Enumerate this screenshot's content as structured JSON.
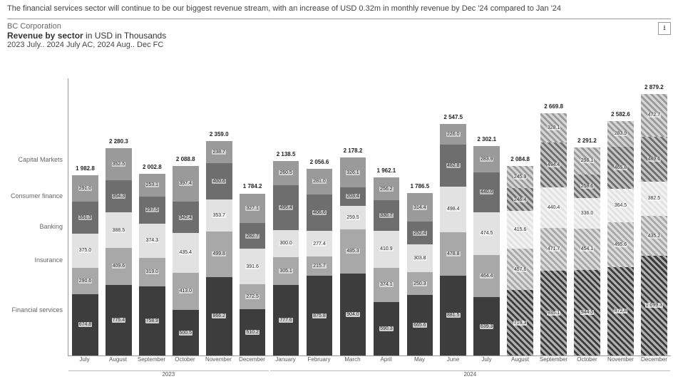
{
  "insight": "The financial services sector will continue to be our biggest revenue stream, with an increase of USD 0.32m in monthly revenue by Dec '24 compared to Jan '24",
  "company": "BC Corporation",
  "title_bold": "Revenue by sector",
  "title_rest": " in USD  in Thousands",
  "subtitle": "2023 July.. 2024 July AC, 2024 Aug.. Dec FC",
  "export_tooltip": "Export",
  "chart": {
    "type": "stacked-bar",
    "y_max": 3050,
    "segment_label_fontsize": 7,
    "total_fontsize": 8,
    "axis_fontsize": 8,
    "colors": {
      "Financial services": "#3d3d3d",
      "Insurance": "#a8a8a8",
      "Banking": "#e2e2e2",
      "Consumer finance": "#6e6e6e",
      "Capital Markets": "#9a9a9a",
      "forecast_overlay": "hatched-white",
      "axis": "#999999",
      "background": "#ffffff"
    },
    "sectors": [
      "Financial services",
      "Insurance",
      "Banking",
      "Consumer finance",
      "Capital Markets"
    ],
    "sector_label_positions_pct": [
      82,
      64,
      52,
      41,
      28
    ],
    "year_groups": [
      {
        "label": "2023",
        "span": 6
      },
      {
        "label": "2024",
        "span": 12
      }
    ],
    "months": [
      {
        "label": "July",
        "year": 2023,
        "fc": false,
        "total": "1 982.8",
        "vals": [
          674.8,
          290.6,
          375.0,
          351.3,
          291.0
        ]
      },
      {
        "label": "August",
        "year": 2023,
        "fc": false,
        "total": "2 280.3",
        "vals": [
          775.4,
          409.6,
          388.5,
          354.3,
          352.5
        ]
      },
      {
        "label": "September",
        "year": 2023,
        "fc": false,
        "total": "2 002.8",
        "vals": [
          758.9,
          319.0,
          374.3,
          297.5,
          253.1
        ]
      },
      {
        "label": "October",
        "year": 2023,
        "fc": false,
        "total": "2 088.8",
        "vals": [
          500.5,
          413.0,
          435.4,
          342.4,
          397.4
        ]
      },
      {
        "label": "November",
        "year": 2023,
        "fc": false,
        "total": "2 359.0",
        "vals": [
          866.2,
          499.8,
          353.7,
          400.6,
          238.7
        ]
      },
      {
        "label": "December",
        "year": 2023,
        "fc": false,
        "total": "1 784.2",
        "vals": [
          510.2,
          272.5,
          391.6,
          282.7,
          327.1
        ]
      },
      {
        "label": "January",
        "year": 2024,
        "fc": false,
        "total": "2 138.5",
        "vals": [
          777.6,
          305.1,
          300.0,
          495.4,
          260.5
        ]
      },
      {
        "label": "February",
        "year": 2024,
        "fc": false,
        "total": "2 056.6",
        "vals": [
          875.8,
          215.7,
          277.4,
          406.6,
          281.0
        ]
      },
      {
        "label": "March",
        "year": 2024,
        "fc": false,
        "total": "2 178.2",
        "vals": [
          904.0,
          485.3,
          259.5,
          203.4,
          326.1
        ]
      },
      {
        "label": "April",
        "year": 2024,
        "fc": false,
        "total": "1 962.1",
        "vals": [
          590.3,
          374.1,
          410.9,
          330.7,
          256.2
        ]
      },
      {
        "label": "May",
        "year": 2024,
        "fc": false,
        "total": "1 786.5",
        "vals": [
          665.6,
          250.3,
          303.8,
          252.4,
          314.4
        ]
      },
      {
        "label": "June",
        "year": 2024,
        "fc": false,
        "total": "2 547.5",
        "vals": [
          881.5,
          478.8,
          498.4,
          462.8,
          226.0
        ]
      },
      {
        "label": "July",
        "year": 2024,
        "fc": false,
        "total": "2 302.1",
        "vals": [
          639.3,
          464.4,
          474.5,
          440.0,
          283.9
        ]
      },
      {
        "label": "August",
        "year": 2024,
        "fc": true,
        "total": "2 084.8",
        "vals": [
          719.3,
          457.6,
          415.6,
          246.4,
          245.9
        ]
      },
      {
        "label": "September",
        "year": 2024,
        "fc": true,
        "total": "2 669.8",
        "vals": [
          935.1,
          471.7,
          440.4,
          494.4,
          328.1
        ]
      },
      {
        "label": "October",
        "year": 2024,
        "fc": true,
        "total": "2 291.2",
        "vals": [
          944.5,
          454.1,
          336.0,
          258.6,
          298.1
        ]
      },
      {
        "label": "November",
        "year": 2024,
        "fc": true,
        "total": "2 582.6",
        "vals": [
          972.8,
          495.6,
          364.5,
          465.8,
          283.9
        ]
      },
      {
        "label": "December",
        "year": 2024,
        "fc": true,
        "total": "2 879.2",
        "vals": [
          1099.3,
          435.2,
          382.5,
          489.6,
          472.7
        ]
      }
    ]
  }
}
